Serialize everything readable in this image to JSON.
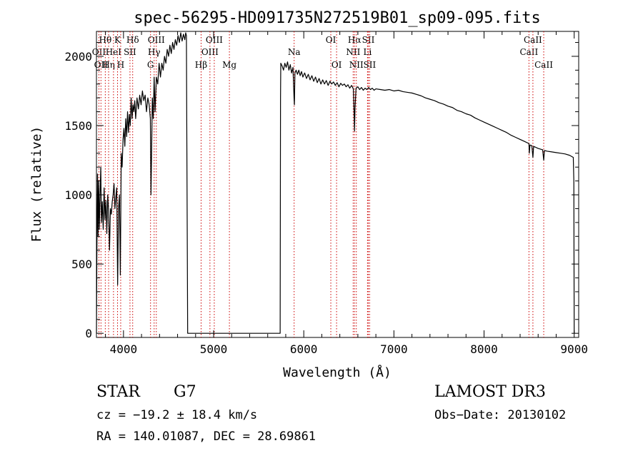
{
  "chart_data": {
    "type": "line",
    "title": "spec-56295-HD091735N272519B01_sp09-095.fits",
    "xlabel": "Wavelength (Å)",
    "ylabel": "Flux (relative)",
    "xlim": [
      3700,
      9050
    ],
    "ylim": [
      -30,
      2180
    ],
    "x_ticks": [
      4000,
      5000,
      6000,
      7000,
      8000,
      9000
    ],
    "y_ticks": [
      0,
      500,
      1000,
      1500,
      2000
    ],
    "x_tick_labels": [
      "4000",
      "5000",
      "6000",
      "7000",
      "8000",
      "9000"
    ],
    "y_tick_labels": [
      "0",
      "500",
      "1000",
      "1500",
      "2000"
    ],
    "line_color": "#000000",
    "marker_color": "#cc0000",
    "series": [
      {
        "name": "flux",
        "points": [
          [
            3700,
            0
          ],
          [
            3705,
            600
          ],
          [
            3712,
            1150
          ],
          [
            3718,
            700
          ],
          [
            3725,
            1100
          ],
          [
            3732,
            750
          ],
          [
            3740,
            1000
          ],
          [
            3748,
            1200
          ],
          [
            3755,
            800
          ],
          [
            3765,
            950
          ],
          [
            3775,
            750
          ],
          [
            3785,
            1050
          ],
          [
            3795,
            820
          ],
          [
            3805,
            960
          ],
          [
            3815,
            720
          ],
          [
            3825,
            1000
          ],
          [
            3835,
            880
          ],
          [
            3845,
            600
          ],
          [
            3855,
            900
          ],
          [
            3865,
            860
          ],
          [
            3875,
            950
          ],
          [
            3885,
            1000
          ],
          [
            3895,
            1080
          ],
          [
            3905,
            900
          ],
          [
            3915,
            980
          ],
          [
            3925,
            1050
          ],
          [
            3935,
            350
          ],
          [
            3945,
            900
          ],
          [
            3955,
            1000
          ],
          [
            3965,
            420
          ],
          [
            3975,
            1300
          ],
          [
            3985,
            1200
          ],
          [
            3995,
            1400
          ],
          [
            4005,
            1480
          ],
          [
            4015,
            1350
          ],
          [
            4025,
            1550
          ],
          [
            4035,
            1420
          ],
          [
            4045,
            1600
          ],
          [
            4055,
            1450
          ],
          [
            4065,
            1580
          ],
          [
            4075,
            1500
          ],
          [
            4085,
            1700
          ],
          [
            4095,
            1550
          ],
          [
            4105,
            1650
          ],
          [
            4115,
            1600
          ],
          [
            4125,
            1680
          ],
          [
            4135,
            1550
          ],
          [
            4150,
            1700
          ],
          [
            4165,
            1620
          ],
          [
            4180,
            1720
          ],
          [
            4195,
            1650
          ],
          [
            4210,
            1750
          ],
          [
            4225,
            1680
          ],
          [
            4240,
            1720
          ],
          [
            4255,
            1600
          ],
          [
            4270,
            1700
          ],
          [
            4285,
            1650
          ],
          [
            4298,
            1550
          ],
          [
            4305,
            1000
          ],
          [
            4312,
            1300
          ],
          [
            4320,
            1700
          ],
          [
            4330,
            1550
          ],
          [
            4340,
            1850
          ],
          [
            4350,
            1600
          ],
          [
            4365,
            1850
          ],
          [
            4380,
            1800
          ],
          [
            4395,
            1950
          ],
          [
            4410,
            1850
          ],
          [
            4425,
            1950
          ],
          [
            4440,
            1900
          ],
          [
            4455,
            2000
          ],
          [
            4470,
            1950
          ],
          [
            4485,
            2050
          ],
          [
            4500,
            2000
          ],
          [
            4515,
            2080
          ],
          [
            4530,
            2020
          ],
          [
            4545,
            2100
          ],
          [
            4560,
            2050
          ],
          [
            4575,
            2120
          ],
          [
            4590,
            2080
          ],
          [
            4605,
            2150
          ],
          [
            4620,
            2100
          ],
          [
            4635,
            2170
          ],
          [
            4650,
            2110
          ],
          [
            4665,
            2160
          ],
          [
            4680,
            2120
          ],
          [
            4690,
            2170
          ],
          [
            4698,
            2150
          ],
          [
            4702,
            1500
          ],
          [
            4708,
            600
          ],
          [
            4712,
            0
          ],
          [
            4750,
            0
          ],
          [
            5000,
            0
          ],
          [
            5250,
            0
          ],
          [
            5500,
            0
          ],
          [
            5738,
            0
          ],
          [
            5742,
            1700
          ],
          [
            5745,
            1950
          ],
          [
            5760,
            1930
          ],
          [
            5775,
            1900
          ],
          [
            5790,
            1950
          ],
          [
            5805,
            1920
          ],
          [
            5820,
            1960
          ],
          [
            5835,
            1900
          ],
          [
            5850,
            1940
          ],
          [
            5865,
            1880
          ],
          [
            5880,
            1920
          ],
          [
            5892,
            1700
          ],
          [
            5896,
            1650
          ],
          [
            5902,
            1880
          ],
          [
            5915,
            1900
          ],
          [
            5930,
            1870
          ],
          [
            5945,
            1900
          ],
          [
            5960,
            1860
          ],
          [
            5975,
            1890
          ],
          [
            5990,
            1850
          ],
          [
            6010,
            1880
          ],
          [
            6030,
            1840
          ],
          [
            6050,
            1870
          ],
          [
            6070,
            1830
          ],
          [
            6090,
            1860
          ],
          [
            6110,
            1820
          ],
          [
            6130,
            1850
          ],
          [
            6150,
            1810
          ],
          [
            6170,
            1840
          ],
          [
            6190,
            1800
          ],
          [
            6210,
            1830
          ],
          [
            6230,
            1800
          ],
          [
            6250,
            1825
          ],
          [
            6270,
            1790
          ],
          [
            6290,
            1820
          ],
          [
            6310,
            1800
          ],
          [
            6330,
            1815
          ],
          [
            6350,
            1790
          ],
          [
            6370,
            1810
          ],
          [
            6390,
            1780
          ],
          [
            6410,
            1805
          ],
          [
            6430,
            1790
          ],
          [
            6450,
            1800
          ],
          [
            6470,
            1780
          ],
          [
            6490,
            1795
          ],
          [
            6510,
            1770
          ],
          [
            6530,
            1790
          ],
          [
            6550,
            1765
          ],
          [
            6558,
            1600
          ],
          [
            6563,
            1460
          ],
          [
            6568,
            1620
          ],
          [
            6580,
            1770
          ],
          [
            6600,
            1780
          ],
          [
            6620,
            1760
          ],
          [
            6640,
            1775
          ],
          [
            6660,
            1755
          ],
          [
            6680,
            1770
          ],
          [
            6700,
            1760
          ],
          [
            6720,
            1775
          ],
          [
            6740,
            1760
          ],
          [
            6760,
            1770
          ],
          [
            6780,
            1755
          ],
          [
            6800,
            1765
          ],
          [
            6850,
            1760
          ],
          [
            6900,
            1755
          ],
          [
            6950,
            1760
          ],
          [
            7000,
            1750
          ],
          [
            7050,
            1755
          ],
          [
            7100,
            1745
          ],
          [
            7150,
            1740
          ],
          [
            7200,
            1735
          ],
          [
            7250,
            1725
          ],
          [
            7300,
            1715
          ],
          [
            7350,
            1700
          ],
          [
            7400,
            1690
          ],
          [
            7450,
            1680
          ],
          [
            7500,
            1665
          ],
          [
            7550,
            1655
          ],
          [
            7600,
            1640
          ],
          [
            7650,
            1630
          ],
          [
            7700,
            1610
          ],
          [
            7750,
            1600
          ],
          [
            7800,
            1585
          ],
          [
            7850,
            1575
          ],
          [
            7900,
            1555
          ],
          [
            7950,
            1540
          ],
          [
            8000,
            1525
          ],
          [
            8050,
            1510
          ],
          [
            8100,
            1495
          ],
          [
            8150,
            1480
          ],
          [
            8200,
            1465
          ],
          [
            8250,
            1450
          ],
          [
            8300,
            1430
          ],
          [
            8350,
            1415
          ],
          [
            8400,
            1400
          ],
          [
            8450,
            1385
          ],
          [
            8498,
            1370
          ],
          [
            8502,
            1300
          ],
          [
            8510,
            1360
          ],
          [
            8530,
            1355
          ],
          [
            8542,
            1270
          ],
          [
            8550,
            1350
          ],
          [
            8600,
            1335
          ],
          [
            8650,
            1325
          ],
          [
            8662,
            1250
          ],
          [
            8670,
            1320
          ],
          [
            8700,
            1315
          ],
          [
            8750,
            1310
          ],
          [
            8800,
            1305
          ],
          [
            8850,
            1300
          ],
          [
            8900,
            1295
          ],
          [
            8950,
            1285
          ],
          [
            8990,
            1270
          ],
          [
            8996,
            1100
          ],
          [
            9000,
            0
          ]
        ]
      }
    ],
    "line_markers": [
      {
        "x": 3727,
        "label": "OII",
        "row": 1
      },
      {
        "x": 3750,
        "label": "OII",
        "row": 2
      },
      {
        "x": 3798,
        "label": "Hθ",
        "row": 0
      },
      {
        "x": 3835,
        "label": "Hη",
        "row": 2
      },
      {
        "x": 3889,
        "label": "HeI",
        "row": 1
      },
      {
        "x": 3934,
        "label": "K",
        "row": 0
      },
      {
        "x": 3969,
        "label": "H",
        "row": 2
      },
      {
        "x": 4072,
        "label": "SII",
        "row": 1
      },
      {
        "x": 4102,
        "label": "Hδ",
        "row": 0
      },
      {
        "x": 4300,
        "label": "G",
        "row": 2
      },
      {
        "x": 4340,
        "label": "Hγ",
        "row": 1
      },
      {
        "x": 4364,
        "label": "OIII",
        "row": 0
      },
      {
        "x": 4861,
        "label": "Hβ",
        "row": 2
      },
      {
        "x": 4959,
        "label": "OIII",
        "row": 1
      },
      {
        "x": 5007,
        "label": "OIII",
        "row": 0
      },
      {
        "x": 5175,
        "label": "Mg",
        "row": 2
      },
      {
        "x": 5893,
        "label": "Na",
        "row": 1
      },
      {
        "x": 6300,
        "label": "OI",
        "row": 0
      },
      {
        "x": 6364,
        "label": "OI",
        "row": 2
      },
      {
        "x": 6548,
        "label": "NII",
        "row": 1
      },
      {
        "x": 6563,
        "label": "Hα",
        "row": 0
      },
      {
        "x": 6583,
        "label": "NII",
        "row": 2
      },
      {
        "x": 6707,
        "label": "Li",
        "row": 1
      },
      {
        "x": 6716,
        "label": "SII",
        "row": 0
      },
      {
        "x": 6731,
        "label": "SII",
        "row": 2
      },
      {
        "x": 8498,
        "label": "CaII",
        "row": 1
      },
      {
        "x": 8542,
        "label": "CaII",
        "row": 0
      },
      {
        "x": 8662,
        "label": "CaII",
        "row": 2
      }
    ]
  },
  "info": {
    "object_type": "STAR",
    "subclass": "G7",
    "survey": "LAMOST DR3",
    "redshift": "cz = −19.2 ± 18.4 km/s",
    "obs_date": "Obs−Date: 20130102",
    "coords": "RA = 140.01087, DEC =  28.69861"
  }
}
